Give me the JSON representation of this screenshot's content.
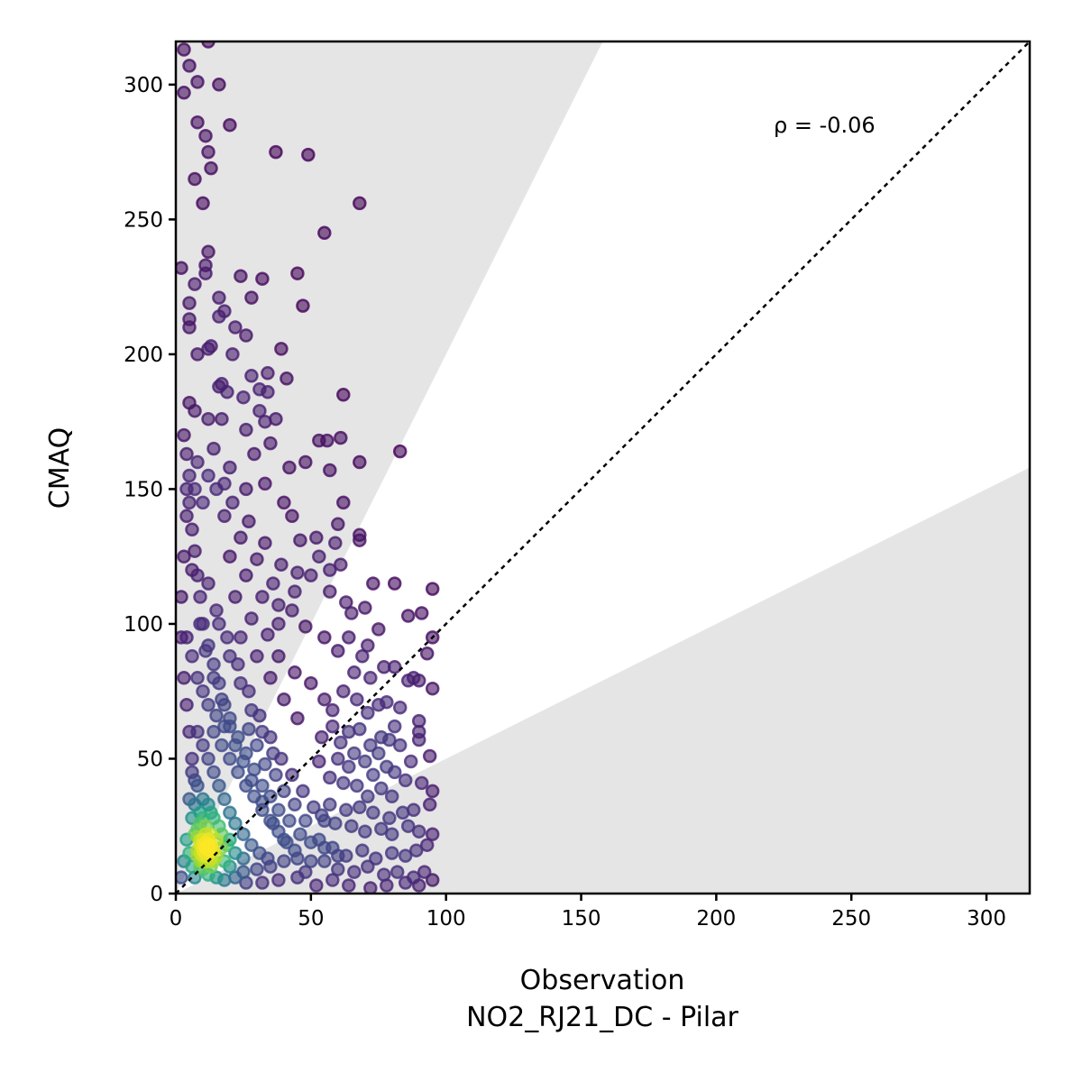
{
  "chart_data": {
    "type": "scatter",
    "xlabel": "Observation",
    "xlabel_sub": "NO2_RJ21_DC - Pilar",
    "ylabel": "CMAQ",
    "xlim": [
      0,
      316
    ],
    "ylim": [
      0,
      316
    ],
    "xticks": [
      "0",
      "50",
      "100",
      "150",
      "200",
      "250",
      "300"
    ],
    "yticks": [
      "0",
      "50",
      "100",
      "150",
      "200",
      "250",
      "300"
    ],
    "annotation": "ρ = -0.06",
    "reference_line": "1:1 dotted",
    "shaded_region": "outside factor-of-2 band (y > 2x or y < x/2)",
    "colormap": "viridis (point density)",
    "points": [
      [
        3,
        313
      ],
      [
        12,
        316
      ],
      [
        5,
        307
      ],
      [
        3,
        297
      ],
      [
        8,
        301
      ],
      [
        16,
        300
      ],
      [
        8,
        286
      ],
      [
        11,
        281
      ],
      [
        20,
        285
      ],
      [
        12,
        275
      ],
      [
        37,
        275
      ],
      [
        49,
        274
      ],
      [
        7,
        265
      ],
      [
        13,
        269
      ],
      [
        10,
        256
      ],
      [
        68,
        256
      ],
      [
        55,
        245
      ],
      [
        2,
        232
      ],
      [
        12,
        238
      ],
      [
        11,
        230
      ],
      [
        11,
        233
      ],
      [
        24,
        229
      ],
      [
        32,
        228
      ],
      [
        45,
        230
      ],
      [
        7,
        226
      ],
      [
        5,
        219
      ],
      [
        16,
        221
      ],
      [
        28,
        221
      ],
      [
        47,
        218
      ],
      [
        5,
        213
      ],
      [
        5,
        210
      ],
      [
        18,
        216
      ],
      [
        16,
        214
      ],
      [
        22,
        210
      ],
      [
        26,
        207
      ],
      [
        21,
        200
      ],
      [
        39,
        202
      ],
      [
        8,
        200
      ],
      [
        13,
        203
      ],
      [
        12,
        202
      ],
      [
        28,
        192
      ],
      [
        34,
        193
      ],
      [
        41,
        191
      ],
      [
        16,
        188
      ],
      [
        17,
        189
      ],
      [
        19,
        186
      ],
      [
        31,
        187
      ],
      [
        34,
        186
      ],
      [
        25,
        184
      ],
      [
        62,
        185
      ],
      [
        5,
        182
      ],
      [
        7,
        179
      ],
      [
        12,
        176
      ],
      [
        17,
        176
      ],
      [
        26,
        172
      ],
      [
        31,
        179
      ],
      [
        33,
        175
      ],
      [
        37,
        176
      ],
      [
        53,
        168
      ],
      [
        56,
        168
      ],
      [
        61,
        169
      ],
      [
        83,
        164
      ],
      [
        68,
        160
      ],
      [
        57,
        157
      ],
      [
        35,
        167
      ],
      [
        29,
        163
      ],
      [
        42,
        158
      ],
      [
        48,
        160
      ],
      [
        8,
        160
      ],
      [
        14,
        165
      ],
      [
        20,
        158
      ],
      [
        26,
        150
      ],
      [
        33,
        152
      ],
      [
        40,
        145
      ],
      [
        43,
        140
      ],
      [
        52,
        132
      ],
      [
        60,
        137
      ],
      [
        62,
        145
      ],
      [
        68,
        133
      ],
      [
        68,
        131
      ],
      [
        59,
        130
      ],
      [
        46,
        131
      ],
      [
        53,
        125
      ],
      [
        61,
        122
      ],
      [
        57,
        120
      ],
      [
        45,
        119
      ],
      [
        50,
        118
      ],
      [
        44,
        112
      ],
      [
        43,
        105
      ],
      [
        38,
        107
      ],
      [
        57,
        112
      ],
      [
        63,
        108
      ],
      [
        73,
        115
      ],
      [
        81,
        115
      ],
      [
        65,
        104
      ],
      [
        70,
        106
      ],
      [
        75,
        98
      ],
      [
        86,
        103
      ],
      [
        95,
        113
      ],
      [
        91,
        104
      ],
      [
        48,
        99
      ],
      [
        55,
        95
      ],
      [
        60,
        90
      ],
      [
        64,
        95
      ],
      [
        71,
        92
      ],
      [
        69,
        88
      ],
      [
        77,
        84
      ],
      [
        81,
        84
      ],
      [
        66,
        82
      ],
      [
        72,
        80
      ],
      [
        88,
        80
      ],
      [
        90,
        79
      ],
      [
        95,
        95
      ],
      [
        93,
        89
      ],
      [
        95,
        76
      ],
      [
        86,
        79
      ],
      [
        50,
        78
      ],
      [
        55,
        72
      ],
      [
        58,
        68
      ],
      [
        62,
        75
      ],
      [
        67,
        72
      ],
      [
        71,
        67
      ],
      [
        75,
        70
      ],
      [
        78,
        71
      ],
      [
        83,
        69
      ],
      [
        90,
        64
      ],
      [
        90,
        60
      ],
      [
        81,
        62
      ],
      [
        76,
        58
      ],
      [
        68,
        61
      ],
      [
        64,
        60
      ],
      [
        58,
        62
      ],
      [
        54,
        58
      ],
      [
        61,
        56
      ],
      [
        66,
        52
      ],
      [
        72,
        55
      ],
      [
        75,
        52
      ],
      [
        79,
        57
      ],
      [
        83,
        55
      ],
      [
        90,
        57
      ],
      [
        94,
        51
      ],
      [
        87,
        49
      ],
      [
        81,
        45
      ],
      [
        78,
        47
      ],
      [
        73,
        44
      ],
      [
        70,
        49
      ],
      [
        64,
        47
      ],
      [
        60,
        50
      ],
      [
        53,
        49
      ],
      [
        57,
        43
      ],
      [
        62,
        41
      ],
      [
        67,
        40
      ],
      [
        71,
        36
      ],
      [
        76,
        39
      ],
      [
        80,
        36
      ],
      [
        85,
        42
      ],
      [
        91,
        41
      ],
      [
        95,
        38
      ],
      [
        94,
        33
      ],
      [
        88,
        31
      ],
      [
        84,
        30
      ],
      [
        79,
        28
      ],
      [
        73,
        30
      ],
      [
        68,
        32
      ],
      [
        63,
        31
      ],
      [
        57,
        33
      ],
      [
        54,
        29
      ],
      [
        59,
        26
      ],
      [
        65,
        25
      ],
      [
        70,
        23
      ],
      [
        76,
        24
      ],
      [
        80,
        22
      ],
      [
        86,
        25
      ],
      [
        90,
        23
      ],
      [
        95,
        22
      ],
      [
        93,
        18
      ],
      [
        89,
        16
      ],
      [
        85,
        14
      ],
      [
        80,
        15
      ],
      [
        74,
        13
      ],
      [
        69,
        16
      ],
      [
        63,
        14
      ],
      [
        58,
        17
      ],
      [
        55,
        12
      ],
      [
        60,
        9
      ],
      [
        66,
        8
      ],
      [
        71,
        10
      ],
      [
        77,
        7
      ],
      [
        82,
        8
      ],
      [
        88,
        6
      ],
      [
        92,
        8
      ],
      [
        95,
        5
      ],
      [
        90,
        3
      ],
      [
        85,
        4
      ],
      [
        78,
        3
      ],
      [
        72,
        2
      ],
      [
        64,
        3
      ],
      [
        58,
        5
      ],
      [
        52,
        3
      ],
      [
        48,
        8
      ],
      [
        45,
        13
      ],
      [
        40,
        20
      ],
      [
        36,
        26
      ],
      [
        32,
        34
      ],
      [
        28,
        42
      ],
      [
        25,
        49
      ],
      [
        22,
        55
      ],
      [
        20,
        62
      ],
      [
        18,
        70
      ],
      [
        16,
        78
      ],
      [
        14,
        85
      ],
      [
        12,
        92
      ],
      [
        10,
        100
      ],
      [
        9,
        110
      ],
      [
        8,
        118
      ],
      [
        7,
        127
      ],
      [
        6,
        135
      ],
      [
        5,
        145
      ],
      [
        5,
        155
      ],
      [
        4,
        163
      ],
      [
        3,
        170
      ],
      [
        4,
        140
      ],
      [
        6,
        120
      ],
      [
        9,
        100
      ],
      [
        11,
        90
      ],
      [
        14,
        80
      ],
      [
        17,
        72
      ],
      [
        20,
        65
      ],
      [
        23,
        58
      ],
      [
        26,
        52
      ],
      [
        29,
        46
      ],
      [
        32,
        40
      ],
      [
        35,
        36
      ],
      [
        38,
        31
      ],
      [
        42,
        27
      ],
      [
        46,
        22
      ],
      [
        50,
        19
      ],
      [
        55,
        17
      ],
      [
        60,
        14
      ],
      [
        24,
        95
      ],
      [
        30,
        88
      ],
      [
        35,
        80
      ],
      [
        40,
        72
      ],
      [
        45,
        65
      ],
      [
        22,
        110
      ],
      [
        28,
        102
      ],
      [
        34,
        96
      ],
      [
        38,
        88
      ],
      [
        44,
        82
      ],
      [
        20,
        125
      ],
      [
        26,
        118
      ],
      [
        32,
        110
      ],
      [
        38,
        100
      ],
      [
        18,
        140
      ],
      [
        24,
        132
      ],
      [
        30,
        124
      ],
      [
        36,
        115
      ],
      [
        15,
        150
      ],
      [
        21,
        145
      ],
      [
        27,
        138
      ],
      [
        33,
        130
      ],
      [
        39,
        122
      ],
      [
        12,
        155
      ],
      [
        18,
        152
      ],
      [
        10,
        145
      ],
      [
        7,
        150
      ],
      [
        4,
        150
      ],
      [
        3,
        125
      ],
      [
        2,
        110
      ],
      [
        2,
        95
      ],
      [
        3,
        80
      ],
      [
        4,
        70
      ],
      [
        5,
        60
      ],
      [
        6,
        50
      ],
      [
        7,
        42
      ],
      [
        15,
        105
      ],
      [
        19,
        95
      ],
      [
        23,
        85
      ],
      [
        27,
        75
      ],
      [
        31,
        66
      ],
      [
        35,
        58
      ],
      [
        39,
        50
      ],
      [
        43,
        44
      ],
      [
        47,
        38
      ],
      [
        51,
        32
      ],
      [
        55,
        27
      ],
      [
        12,
        115
      ],
      [
        16,
        100
      ],
      [
        20,
        88
      ],
      [
        24,
        78
      ],
      [
        28,
        68
      ],
      [
        32,
        60
      ],
      [
        36,
        52
      ],
      [
        14,
        60
      ],
      [
        17,
        55
      ],
      [
        20,
        50
      ],
      [
        23,
        45
      ],
      [
        26,
        40
      ],
      [
        29,
        36
      ],
      [
        32,
        31
      ],
      [
        35,
        27
      ],
      [
        38,
        23
      ],
      [
        41,
        19
      ],
      [
        44,
        16
      ],
      [
        12,
        70
      ],
      [
        15,
        66
      ],
      [
        18,
        62
      ],
      [
        10,
        75
      ],
      [
        8,
        80
      ],
      [
        6,
        88
      ],
      [
        4,
        95
      ],
      [
        40,
        12
      ],
      [
        35,
        10
      ],
      [
        30,
        9
      ],
      [
        25,
        8
      ],
      [
        20,
        10
      ],
      [
        45,
        6
      ],
      [
        38,
        5
      ],
      [
        32,
        4
      ],
      [
        26,
        4
      ],
      [
        22,
        6
      ],
      [
        50,
        12
      ],
      [
        53,
        20
      ],
      [
        48,
        27
      ],
      [
        44,
        33
      ],
      [
        40,
        38
      ],
      [
        37,
        44
      ],
      [
        33,
        48
      ],
      [
        30,
        55
      ],
      [
        27,
        61
      ],
      [
        20,
        30
      ],
      [
        22,
        26
      ],
      [
        25,
        22
      ],
      [
        28,
        18
      ],
      [
        31,
        15
      ],
      [
        34,
        13
      ],
      [
        18,
        35
      ],
      [
        16,
        40
      ],
      [
        14,
        45
      ],
      [
        12,
        50
      ],
      [
        10,
        55
      ],
      [
        8,
        60
      ],
      [
        17,
        22
      ],
      [
        19,
        18
      ],
      [
        22,
        15
      ],
      [
        25,
        13
      ],
      [
        14,
        28
      ],
      [
        12,
        33
      ],
      [
        15,
        14
      ],
      [
        18,
        12
      ],
      [
        13,
        18
      ],
      [
        11,
        22
      ],
      [
        9,
        26
      ],
      [
        20,
        20
      ],
      [
        16,
        25
      ],
      [
        13,
        30
      ],
      [
        10,
        35
      ],
      [
        8,
        40
      ],
      [
        6,
        45
      ],
      [
        5,
        35
      ],
      [
        6,
        28
      ],
      [
        7,
        22
      ],
      [
        8,
        16
      ],
      [
        9,
        12
      ],
      [
        10,
        9
      ],
      [
        12,
        7
      ],
      [
        15,
        6
      ],
      [
        18,
        5
      ],
      [
        4,
        20
      ],
      [
        5,
        15
      ],
      [
        6,
        10
      ],
      [
        7,
        6
      ],
      [
        3,
        12
      ],
      [
        2,
        6
      ],
      [
        12,
        12
      ],
      [
        11,
        15
      ],
      [
        10,
        18
      ],
      [
        9,
        20
      ],
      [
        8,
        24
      ],
      [
        13,
        10
      ],
      [
        14,
        16
      ],
      [
        11,
        25
      ],
      [
        9,
        30
      ],
      [
        7,
        33
      ],
      [
        15,
        20
      ],
      [
        17,
        17
      ],
      [
        13,
        22
      ],
      [
        10,
        28
      ],
      [
        11,
        14
      ],
      [
        10,
        16
      ],
      [
        12,
        16
      ],
      [
        9,
        18
      ],
      [
        11,
        19
      ],
      [
        10,
        12
      ],
      [
        12,
        14
      ],
      [
        13,
        13
      ],
      [
        9,
        15
      ],
      [
        11,
        17
      ],
      [
        10,
        20
      ],
      [
        8,
        21
      ],
      [
        12,
        18
      ],
      [
        14,
        12
      ],
      [
        9,
        10
      ],
      [
        10,
        14
      ],
      [
        11,
        12
      ],
      [
        8,
        14
      ],
      [
        12,
        20
      ],
      [
        13,
        16
      ]
    ]
  }
}
